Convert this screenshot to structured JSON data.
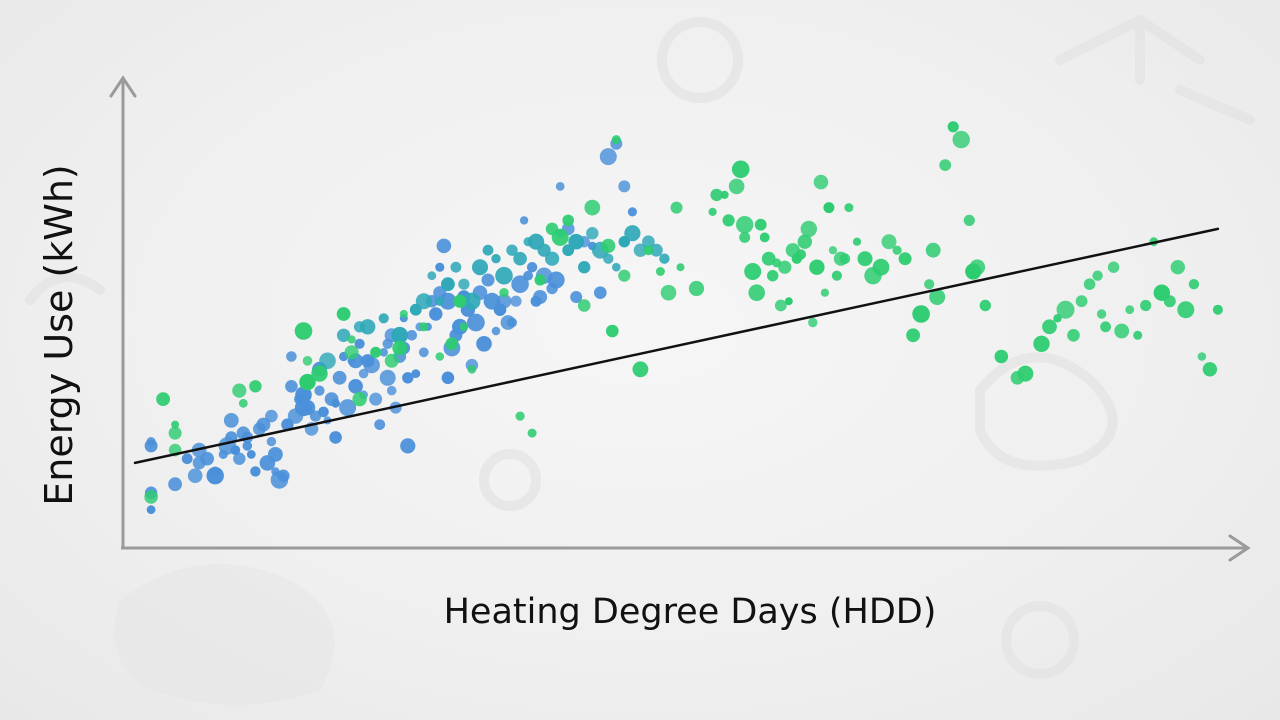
{
  "chart_data": {
    "type": "scatter",
    "title": "",
    "xlabel": "Heating Degree Days (HDD)",
    "ylabel": "Energy Use (kWh)",
    "x_ticks_shown": false,
    "y_ticks_shown": false,
    "grid": false,
    "colors": {
      "blue": "#4a90d9",
      "teal": "#2fa8b8",
      "green": "#2ecc71",
      "trend": "#111111",
      "axis": "#9a9a9a"
    },
    "series": [
      {
        "color_key": "blue",
        "points": [
          [
            4,
            24
          ],
          [
            4,
            25
          ],
          [
            4,
            13
          ],
          [
            4,
            9
          ],
          [
            10,
            15
          ],
          [
            13,
            21
          ],
          [
            15,
            17
          ],
          [
            16,
            20
          ],
          [
            16,
            23
          ],
          [
            18,
            21
          ],
          [
            20,
            18
          ],
          [
            20,
            17
          ],
          [
            22,
            22
          ],
          [
            23,
            24
          ],
          [
            24,
            26
          ],
          [
            24,
            30
          ],
          [
            25,
            23
          ],
          [
            26,
            21
          ],
          [
            27,
            27
          ],
          [
            28,
            24
          ],
          [
            28,
            26
          ],
          [
            29,
            22
          ],
          [
            30,
            18
          ],
          [
            31,
            28
          ],
          [
            32,
            29
          ],
          [
            33,
            20
          ],
          [
            34,
            25
          ],
          [
            34,
            31
          ],
          [
            35,
            18
          ],
          [
            35,
            22
          ],
          [
            36,
            16
          ],
          [
            37,
            17
          ],
          [
            38,
            29
          ],
          [
            39,
            38
          ],
          [
            39,
            45
          ],
          [
            40,
            31
          ],
          [
            41,
            35
          ],
          [
            42,
            36
          ],
          [
            42,
            33
          ],
          [
            43,
            33
          ],
          [
            44,
            28
          ],
          [
            45,
            31
          ],
          [
            46,
            37
          ],
          [
            46,
            42
          ],
          [
            47,
            32
          ],
          [
            48,
            30
          ],
          [
            49,
            35
          ],
          [
            50,
            34
          ],
          [
            50,
            26
          ],
          [
            51,
            40
          ],
          [
            52,
            45
          ],
          [
            53,
            33
          ],
          [
            54,
            44
          ],
          [
            55,
            44
          ],
          [
            55,
            38
          ],
          [
            56,
            48
          ],
          [
            57,
            41
          ],
          [
            57,
            36
          ],
          [
            58,
            44
          ],
          [
            59,
            43
          ],
          [
            60,
            35
          ],
          [
            61,
            29
          ],
          [
            62,
            46
          ],
          [
            63,
            48
          ],
          [
            63,
            40
          ],
          [
            64,
            37
          ],
          [
            64,
            50
          ],
          [
            65,
            33
          ],
          [
            66,
            45
          ],
          [
            67,
            54
          ],
          [
            67,
            47
          ],
          [
            68,
            40
          ],
          [
            68,
            24
          ],
          [
            69,
            50
          ],
          [
            70,
            41
          ],
          [
            71,
            52
          ],
          [
            72,
            46
          ],
          [
            73,
            52
          ],
          [
            74,
            58
          ],
          [
            75,
            55
          ],
          [
            76,
            60
          ],
          [
            76,
            66
          ],
          [
            77,
            71
          ],
          [
            78,
            58
          ],
          [
            78,
            40
          ],
          [
            79,
            47
          ],
          [
            80,
            50
          ],
          [
            81,
            52
          ],
          [
            82,
            59
          ],
          [
            83,
            56
          ],
          [
            84,
            43
          ],
          [
            85,
            53
          ],
          [
            86,
            60
          ],
          [
            87,
            48
          ],
          [
            88,
            63
          ],
          [
            89,
            58
          ],
          [
            90,
            51
          ],
          [
            91,
            56
          ],
          [
            92,
            58
          ],
          [
            93,
            53
          ],
          [
            94,
            53
          ],
          [
            95,
            58
          ],
          [
            96,
            62
          ],
          [
            97,
            77
          ],
          [
            98,
            64
          ],
          [
            99,
            66
          ],
          [
            100,
            58
          ],
          [
            101,
            59
          ],
          [
            102,
            64
          ],
          [
            104,
            61
          ],
          [
            105,
            63
          ],
          [
            106,
            85
          ],
          [
            108,
            75
          ],
          [
            110,
            59
          ],
          [
            112,
            72
          ],
          [
            114,
            71
          ],
          [
            116,
            60
          ],
          [
            118,
            92
          ],
          [
            120,
            95
          ],
          [
            122,
            85
          ],
          [
            124,
            79
          ]
        ]
      },
      {
        "color_key": "teal",
        "points": [
          [
            48,
            44
          ],
          [
            52,
            50
          ],
          [
            56,
            52
          ],
          [
            58,
            52
          ],
          [
            62,
            54
          ],
          [
            66,
            50
          ],
          [
            70,
            56
          ],
          [
            72,
            58
          ],
          [
            74,
            64
          ],
          [
            76,
            58
          ],
          [
            78,
            62
          ],
          [
            80,
            66
          ],
          [
            82,
            62
          ],
          [
            84,
            58
          ],
          [
            86,
            66
          ],
          [
            88,
            70
          ],
          [
            90,
            68
          ],
          [
            92,
            64
          ],
          [
            94,
            70
          ],
          [
            96,
            68
          ],
          [
            98,
            72
          ],
          [
            100,
            72
          ],
          [
            102,
            70
          ],
          [
            104,
            68
          ],
          [
            106,
            74
          ],
          [
            108,
            70
          ],
          [
            110,
            72
          ],
          [
            112,
            66
          ],
          [
            114,
            74
          ],
          [
            116,
            70
          ],
          [
            118,
            68
          ],
          [
            120,
            66
          ],
          [
            122,
            72
          ],
          [
            124,
            74
          ],
          [
            126,
            70
          ],
          [
            128,
            72
          ],
          [
            130,
            70
          ],
          [
            132,
            68
          ]
        ]
      },
      {
        "color_key": "green",
        "points": [
          [
            4,
            12
          ],
          [
            7,
            35
          ],
          [
            10,
            27
          ],
          [
            10,
            29
          ],
          [
            10,
            23
          ],
          [
            26,
            37
          ],
          [
            27,
            34
          ],
          [
            30,
            38
          ],
          [
            42,
            51
          ],
          [
            43,
            44
          ],
          [
            43,
            39
          ],
          [
            46,
            41
          ],
          [
            52,
            55
          ],
          [
            54,
            49
          ],
          [
            54,
            46
          ],
          [
            56,
            35
          ],
          [
            60,
            46
          ],
          [
            64,
            44
          ],
          [
            66,
            47
          ],
          [
            67,
            55
          ],
          [
            72,
            52
          ],
          [
            76,
            45
          ],
          [
            79,
            48
          ],
          [
            81,
            58
          ],
          [
            82,
            52
          ],
          [
            84,
            42
          ],
          [
            92,
            60
          ],
          [
            96,
            31
          ],
          [
            99,
            27
          ],
          [
            101,
            63
          ],
          [
            104,
            75
          ],
          [
            106,
            73
          ],
          [
            108,
            77
          ],
          [
            112,
            57
          ],
          [
            114,
            80
          ],
          [
            118,
            71
          ],
          [
            119,
            51
          ],
          [
            120,
            96
          ],
          [
            122,
            64
          ],
          [
            126,
            42
          ],
          [
            128,
            70
          ],
          [
            131,
            65
          ],
          [
            133,
            60
          ],
          [
            135,
            80
          ],
          [
            136,
            66
          ],
          [
            140,
            61
          ],
          [
            144,
            79
          ],
          [
            145,
            83
          ],
          [
            147,
            83
          ],
          [
            148,
            77
          ],
          [
            150,
            85
          ],
          [
            151,
            89
          ],
          [
            152,
            76
          ],
          [
            152,
            73
          ],
          [
            154,
            65
          ],
          [
            155,
            60
          ],
          [
            156,
            76
          ],
          [
            157,
            73
          ],
          [
            158,
            68
          ],
          [
            159,
            64
          ],
          [
            160,
            67
          ],
          [
            161,
            57
          ],
          [
            162,
            66
          ],
          [
            163,
            58
          ],
          [
            164,
            70
          ],
          [
            165,
            68
          ],
          [
            166,
            69
          ],
          [
            167,
            72
          ],
          [
            168,
            75
          ],
          [
            169,
            53
          ],
          [
            170,
            66
          ],
          [
            171,
            86
          ],
          [
            172,
            60
          ],
          [
            173,
            80
          ],
          [
            174,
            70
          ],
          [
            175,
            64
          ],
          [
            176,
            68
          ],
          [
            177,
            68
          ],
          [
            178,
            80
          ],
          [
            180,
            72
          ],
          [
            182,
            68
          ],
          [
            184,
            64
          ],
          [
            186,
            66
          ],
          [
            188,
            72
          ],
          [
            190,
            70
          ],
          [
            192,
            68
          ],
          [
            194,
            50
          ],
          [
            196,
            55
          ],
          [
            198,
            62
          ],
          [
            199,
            70
          ],
          [
            200,
            59
          ],
          [
            202,
            90
          ],
          [
            204,
            99
          ],
          [
            206,
            96
          ],
          [
            208,
            77
          ],
          [
            209,
            65
          ],
          [
            210,
            66
          ],
          [
            212,
            57
          ],
          [
            216,
            45
          ],
          [
            220,
            40
          ],
          [
            222,
            41
          ],
          [
            226,
            48
          ],
          [
            228,
            52
          ],
          [
            230,
            54
          ],
          [
            232,
            56
          ],
          [
            234,
            50
          ],
          [
            236,
            58
          ],
          [
            238,
            62
          ],
          [
            240,
            64
          ],
          [
            241,
            55
          ],
          [
            242,
            52
          ],
          [
            244,
            66
          ],
          [
            246,
            51
          ],
          [
            248,
            56
          ],
          [
            250,
            50
          ],
          [
            252,
            57
          ],
          [
            254,
            72
          ],
          [
            256,
            60
          ],
          [
            258,
            58
          ],
          [
            260,
            66
          ],
          [
            262,
            56
          ],
          [
            264,
            62
          ],
          [
            266,
            45
          ],
          [
            268,
            42
          ],
          [
            270,
            56
          ]
        ]
      }
    ],
    "trend_line": {
      "x": [
        0,
        270
      ],
      "y": [
        20,
        75
      ]
    },
    "xlim": [
      -3,
      277
    ],
    "ylim": [
      0,
      110
    ]
  }
}
